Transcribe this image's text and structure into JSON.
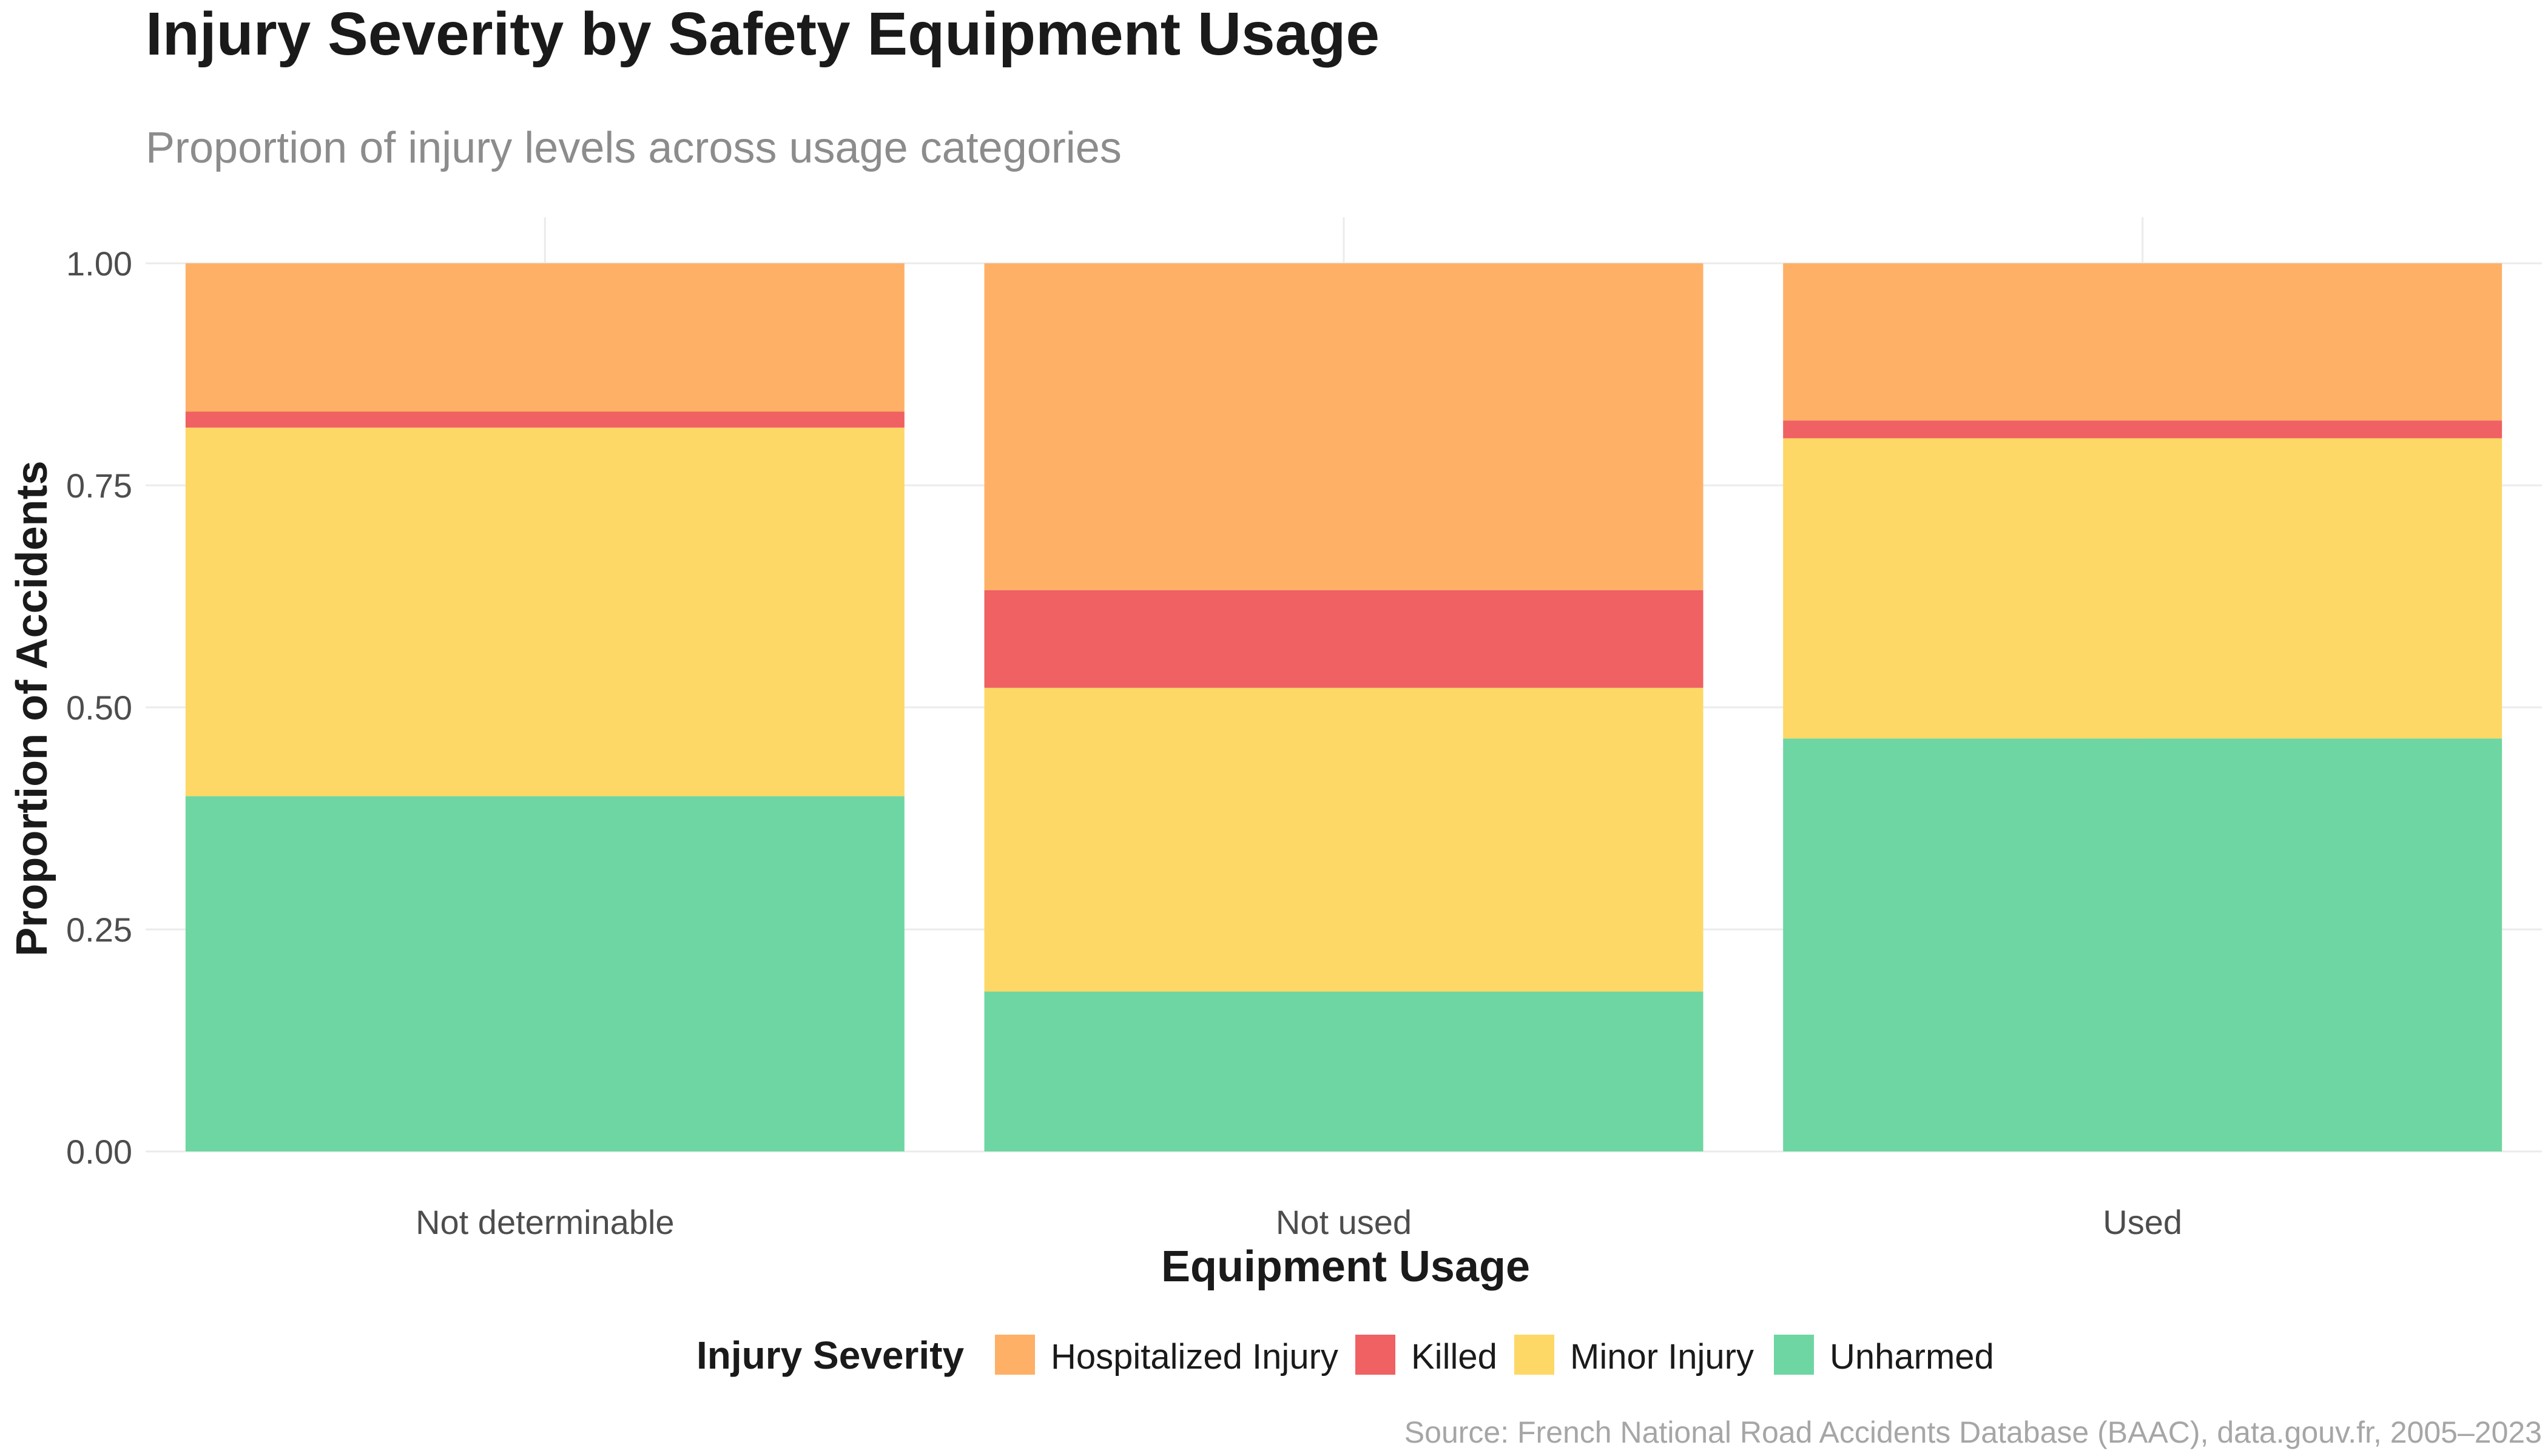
{
  "chart_data": {
    "type": "bar",
    "stacked": true,
    "title": "Injury Severity by Safety Equipment Usage",
    "subtitle": "Proportion of injury levels across usage categories",
    "xlabel": "Equipment Usage",
    "ylabel": "Proportion of Accidents",
    "ylim": [
      0,
      1
    ],
    "yticks": [
      "0.00",
      "0.25",
      "0.50",
      "0.75",
      "1.00"
    ],
    "categories": [
      "Not determinable",
      "Not used",
      "Used"
    ],
    "series": [
      {
        "name": "Unharmed",
        "color": "#6ED6A2",
        "values": [
          0.4,
          0.18,
          0.465
        ]
      },
      {
        "name": "Minor Injury",
        "color": "#FDD866",
        "values": [
          0.415,
          0.342,
          0.338
        ]
      },
      {
        "name": "Killed",
        "color": "#EF6162",
        "values": [
          0.018,
          0.11,
          0.02
        ]
      },
      {
        "name": "Hospitalized Injury",
        "color": "#FFB067",
        "values": [
          0.167,
          0.368,
          0.177
        ]
      }
    ],
    "legend": {
      "title": "Injury Severity",
      "position": "bottom",
      "order": [
        "Hospitalized Injury",
        "Killed",
        "Minor Injury",
        "Unharmed"
      ]
    },
    "grid": true,
    "caption": "Source: French National Road Accidents Database (BAAC), data.gouv.fr, 2005–2023"
  }
}
